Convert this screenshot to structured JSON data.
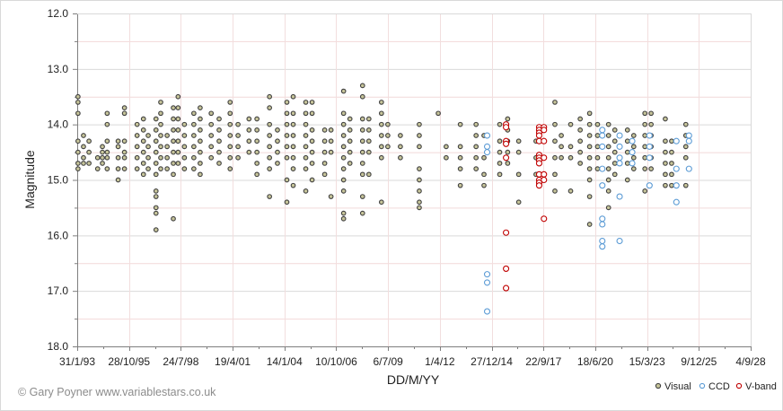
{
  "chart_data": {
    "type": "scatter",
    "xlabel": "DD/M/YY",
    "ylabel": "Magnitude",
    "ylim": [
      12.0,
      18.0
    ],
    "y_inverted": true,
    "y_ticks": [
      "12.0",
      "13.0",
      "14.0",
      "15.0",
      "16.0",
      "17.0",
      "18.0"
    ],
    "x_ticks": [
      "31/1/93",
      "28/10/95",
      "24/7/98",
      "19/4/01",
      "14/1/04",
      "10/10/06",
      "6/7/09",
      "1/4/12",
      "27/12/14",
      "22/9/17",
      "18/6/20",
      "15/3/23",
      "9/12/25",
      "4/9/28"
    ],
    "x_tick_dates": [
      "1993-01-31",
      "1995-10-28",
      "1998-07-24",
      "2001-04-19",
      "2004-01-14",
      "2006-10-10",
      "2009-07-06",
      "2012-04-01",
      "2014-12-27",
      "2017-09-22",
      "2020-06-18",
      "2023-03-15",
      "2025-12-09",
      "2028-09-04"
    ],
    "grid": true,
    "legend_position": "bottom-right",
    "credit": "© Gary Poyner  www.variablestars.co.uk",
    "series": [
      {
        "name": "Visual",
        "color": "#404040",
        "fill": "#c7c59a",
        "clusters": [
          {
            "date": "1993-02-15",
            "mags": [
              13.5,
              13.6,
              13.8,
              14.3,
              14.5,
              14.7,
              14.8
            ]
          },
          {
            "date": "1993-06-01",
            "mags": [
              14.2,
              14.4,
              14.6,
              14.7
            ]
          },
          {
            "date": "1993-09-15",
            "mags": [
              14.3,
              14.5,
              14.7
            ]
          },
          {
            "date": "1994-03-01",
            "mags": [
              14.6,
              14.8
            ]
          },
          {
            "date": "1994-06-01",
            "mags": [
              14.4,
              14.5,
              14.6,
              14.7
            ]
          },
          {
            "date": "1994-09-01",
            "mags": [
              13.8,
              14.0,
              14.3,
              14.5,
              14.6,
              14.8
            ]
          },
          {
            "date": "1995-04-01",
            "mags": [
              14.3,
              14.4,
              14.6,
              14.8,
              15.0
            ]
          },
          {
            "date": "1995-08-01",
            "mags": [
              13.7,
              13.8,
              14.3,
              14.5,
              14.6,
              14.8
            ]
          },
          {
            "date": "1996-04-01",
            "mags": [
              14.0,
              14.2,
              14.4,
              14.6,
              14.8
            ]
          },
          {
            "date": "1996-08-01",
            "mags": [
              13.9,
              14.1,
              14.3,
              14.5,
              14.7,
              14.9
            ]
          },
          {
            "date": "1996-11-01",
            "mags": [
              14.2,
              14.4,
              14.6,
              14.8
            ]
          },
          {
            "date": "1997-04-01",
            "mags": [
              13.9,
              14.1,
              14.3,
              14.5,
              14.7,
              14.9,
              15.2,
              15.3,
              15.5,
              15.6,
              15.9
            ]
          },
          {
            "date": "1997-07-01",
            "mags": [
              13.6,
              13.8,
              14.0,
              14.2,
              14.4,
              14.6,
              14.8
            ]
          },
          {
            "date": "1997-11-01",
            "mags": [
              14.2,
              14.4,
              14.6,
              14.8
            ]
          },
          {
            "date": "1998-03-01",
            "mags": [
              13.7,
              13.9,
              14.1,
              14.3,
              14.5,
              14.7,
              14.9,
              15.7
            ]
          },
          {
            "date": "1998-06-01",
            "mags": [
              13.5,
              13.7,
              13.9,
              14.1,
              14.3,
              14.5,
              14.7
            ]
          },
          {
            "date": "1998-10-01",
            "mags": [
              14.0,
              14.2,
              14.4,
              14.6,
              14.8
            ]
          },
          {
            "date": "1999-04-01",
            "mags": [
              13.8,
              14.0,
              14.2,
              14.4,
              14.6,
              14.8
            ]
          },
          {
            "date": "1999-08-01",
            "mags": [
              13.7,
              13.9,
              14.1,
              14.3,
              14.5,
              14.7,
              14.9
            ]
          },
          {
            "date": "2000-03-01",
            "mags": [
              13.8,
              14.0,
              14.2,
              14.4,
              14.6
            ]
          },
          {
            "date": "2000-08-01",
            "mags": [
              13.9,
              14.1,
              14.3,
              14.5,
              14.7
            ]
          },
          {
            "date": "2001-03-01",
            "mags": [
              13.6,
              13.8,
              14.0,
              14.2,
              14.4,
              14.6,
              14.8
            ]
          },
          {
            "date": "2001-08-01",
            "mags": [
              14.0,
              14.2,
              14.4,
              14.6
            ]
          },
          {
            "date": "2002-03-01",
            "mags": [
              13.9,
              14.1,
              14.3,
              14.5
            ]
          },
          {
            "date": "2002-08-01",
            "mags": [
              13.9,
              14.1,
              14.3,
              14.5,
              14.7,
              14.9
            ]
          },
          {
            "date": "2003-04-01",
            "mags": [
              13.5,
              13.7,
              14.0,
              14.2,
              14.4,
              14.6,
              14.8,
              15.3
            ]
          },
          {
            "date": "2003-09-01",
            "mags": [
              14.1,
              14.3,
              14.5,
              14.7
            ]
          },
          {
            "date": "2004-03-01",
            "mags": [
              13.6,
              13.8,
              14.0,
              14.2,
              14.4,
              14.6,
              15.0,
              15.4
            ]
          },
          {
            "date": "2004-07-01",
            "mags": [
              13.5,
              13.8,
              14.0,
              14.2,
              14.4,
              14.6,
              14.8,
              15.1
            ]
          },
          {
            "date": "2005-03-01",
            "mags": [
              13.6,
              13.8,
              14.0,
              14.2,
              14.4,
              14.6,
              14.8,
              15.2
            ]
          },
          {
            "date": "2005-07-01",
            "mags": [
              13.6,
              13.8,
              14.1,
              14.3,
              14.5,
              14.7,
              15.0
            ]
          },
          {
            "date": "2006-03-01",
            "mags": [
              14.1,
              14.3,
              14.5,
              14.7,
              14.9
            ]
          },
          {
            "date": "2006-07-01",
            "mags": [
              14.1,
              14.3,
              14.5,
              15.3
            ]
          },
          {
            "date": "2007-03-01",
            "mags": [
              13.4,
              13.8,
              14.0,
              14.2,
              14.4,
              14.6,
              14.8,
              15.0,
              15.2,
              15.6,
              15.7
            ]
          },
          {
            "date": "2007-07-01",
            "mags": [
              13.9,
              14.1,
              14.3,
              14.5,
              14.7
            ]
          },
          {
            "date": "2008-03-01",
            "mags": [
              13.3,
              13.5,
              13.9,
              14.1,
              14.3,
              14.5,
              14.7,
              14.9,
              15.3,
              15.6
            ]
          },
          {
            "date": "2008-07-01",
            "mags": [
              13.9,
              14.1,
              14.3,
              14.5,
              14.9
            ]
          },
          {
            "date": "2009-03-01",
            "mags": [
              13.6,
              13.8,
              14.0,
              14.2,
              14.4,
              14.6,
              15.4
            ]
          },
          {
            "date": "2009-07-01",
            "mags": [
              14.0,
              14.2,
              14.4
            ]
          },
          {
            "date": "2010-03-01",
            "mags": [
              14.2,
              14.4,
              14.6
            ]
          },
          {
            "date": "2011-03-01",
            "mags": [
              14.0,
              14.2,
              14.4,
              14.8,
              15.0,
              15.2,
              15.4,
              15.5
            ]
          },
          {
            "date": "2012-03-01",
            "mags": [
              13.8
            ]
          },
          {
            "date": "2012-08-01",
            "mags": [
              14.4,
              14.6
            ]
          },
          {
            "date": "2013-05-01",
            "mags": [
              14.0,
              14.4,
              14.6,
              14.8,
              15.1
            ]
          },
          {
            "date": "2014-03-01",
            "mags": [
              14.0,
              14.2,
              14.4,
              14.6,
              14.8
            ]
          },
          {
            "date": "2014-08-01",
            "mags": [
              14.2,
              14.6,
              14.9,
              15.1
            ]
          },
          {
            "date": "2015-06-01",
            "mags": [
              14.0,
              14.3,
              14.5,
              14.7,
              14.9
            ]
          },
          {
            "date": "2015-11-01",
            "mags": [
              13.9,
              14.1,
              14.3,
              14.5,
              14.7
            ]
          },
          {
            "date": "2016-06-01",
            "mags": [
              14.3,
              14.5,
              14.9,
              15.4
            ]
          },
          {
            "date": "2017-05-01",
            "mags": [
              14.3,
              14.6,
              14.9
            ]
          },
          {
            "date": "2018-05-01",
            "mags": [
              13.6,
              14.0,
              14.3,
              14.6,
              14.9,
              15.2
            ]
          },
          {
            "date": "2018-09-01",
            "mags": [
              14.2,
              14.4,
              14.6
            ]
          },
          {
            "date": "2019-03-01",
            "mags": [
              14.0,
              14.4,
              14.6,
              15.2
            ]
          },
          {
            "date": "2019-09-01",
            "mags": [
              13.9,
              14.1,
              14.3,
              14.5,
              14.7
            ]
          },
          {
            "date": "2020-03-01",
            "mags": [
              13.8,
              14.0,
              14.2,
              14.4,
              14.6,
              14.8,
              15.0,
              15.3,
              15.8
            ]
          },
          {
            "date": "2020-08-01",
            "mags": [
              14.0,
              14.2,
              14.4,
              14.6,
              14.8
            ]
          },
          {
            "date": "2021-03-01",
            "mags": [
              14.0,
              14.2,
              14.4,
              14.6,
              14.8,
              15.0,
              15.2,
              15.5
            ]
          },
          {
            "date": "2021-07-01",
            "mags": [
              14.1,
              14.3,
              14.5,
              14.7,
              14.9
            ]
          },
          {
            "date": "2022-03-01",
            "mags": [
              14.1,
              14.3,
              14.5,
              14.7,
              15.0
            ]
          },
          {
            "date": "2022-07-01",
            "mags": [
              14.2,
              14.4,
              14.6,
              14.8
            ]
          },
          {
            "date": "2023-02-01",
            "mags": [
              13.8,
              14.0,
              14.2,
              14.4,
              14.6,
              14.8,
              15.2
            ]
          },
          {
            "date": "2023-06-01",
            "mags": [
              13.8,
              14.0,
              14.2,
              14.4,
              14.6,
              14.8
            ]
          },
          {
            "date": "2024-03-01",
            "mags": [
              13.9,
              14.3,
              14.5,
              14.7,
              14.9,
              15.1
            ]
          },
          {
            "date": "2024-07-01",
            "mags": [
              14.3,
              14.5,
              14.7,
              14.9,
              15.1
            ]
          },
          {
            "date": "2025-04-01",
            "mags": [
              14.0,
              14.2,
              14.4,
              14.6,
              15.1
            ]
          }
        ]
      },
      {
        "name": "CCD",
        "color": "#5b9bd5",
        "fill": "#ffffff",
        "clusters": [
          {
            "date": "2014-10-01",
            "mags": [
              14.2,
              14.4,
              14.5,
              16.7,
              16.85,
              17.37
            ]
          },
          {
            "date": "2020-11-01",
            "mags": [
              14.1,
              14.2,
              14.4,
              14.8,
              15.1,
              15.7,
              15.8,
              16.1,
              16.2
            ]
          },
          {
            "date": "2021-10-01",
            "mags": [
              14.2,
              14.4,
              14.6,
              14.7,
              15.3,
              16.1
            ]
          },
          {
            "date": "2022-06-01",
            "mags": [
              14.3,
              14.5,
              14.7
            ]
          },
          {
            "date": "2023-05-01",
            "mags": [
              14.2,
              14.4,
              14.6,
              15.1
            ]
          },
          {
            "date": "2024-10-01",
            "mags": [
              14.3,
              14.8,
              15.1,
              15.4
            ]
          },
          {
            "date": "2025-06-01",
            "mags": [
              14.2,
              14.3,
              14.8
            ]
          }
        ]
      },
      {
        "name": "V-band",
        "color": "#c00000",
        "fill": "#ffffff",
        "clusters": [
          {
            "date": "2015-10-01",
            "mags": [
              14.0,
              14.05,
              14.3,
              14.35,
              14.6,
              15.95,
              16.6,
              16.95
            ]
          },
          {
            "date": "2017-07-01",
            "mags": [
              14.05,
              14.1,
              14.15,
              14.2,
              14.3,
              14.55,
              14.6,
              14.65,
              14.7,
              14.9,
              15.0,
              15.05,
              15.1
            ]
          },
          {
            "date": "2017-10-01",
            "mags": [
              14.05,
              14.1,
              14.3,
              14.6,
              14.9,
              15.0,
              15.7
            ]
          }
        ]
      }
    ]
  }
}
